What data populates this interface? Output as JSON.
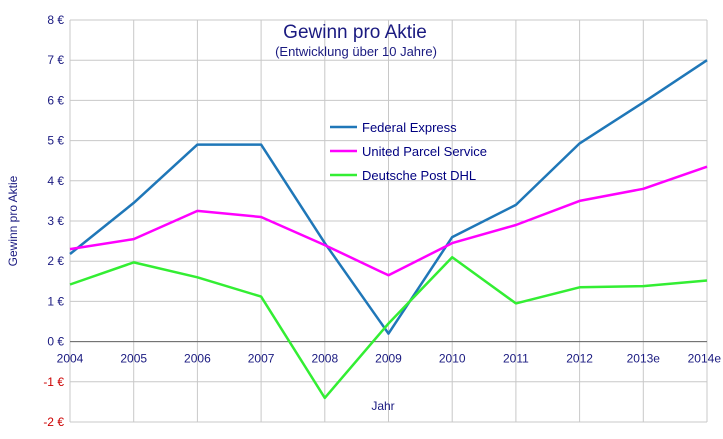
{
  "chart_data": {
    "type": "line",
    "title": "Gewinn pro Aktie",
    "subtitle": "(Entwicklung über 10 Jahre)",
    "xlabel": "Jahr",
    "ylabel": "Gewinn pro Aktie",
    "categories": [
      "2004",
      "2005",
      "2006",
      "2007",
      "2008",
      "2009",
      "2010",
      "2011",
      "2012",
      "2013e",
      "2014e"
    ],
    "y_ticks": [
      -2,
      -1,
      0,
      1,
      2,
      3,
      4,
      5,
      6,
      7,
      8
    ],
    "y_tick_labels": [
      "-2 €",
      "-1 €",
      "0 €",
      "1 €",
      "2 €",
      "3 €",
      "4 €",
      "5 €",
      "6 €",
      "7 €",
      "8 €"
    ],
    "ylim": [
      -2,
      8
    ],
    "grid": true,
    "legend_position": "center",
    "negative_tick_color": "#cc0000",
    "series": [
      {
        "name": "Federal Express",
        "color": "#1f77b8",
        "values": [
          2.18,
          3.45,
          4.9,
          4.9,
          2.45,
          0.2,
          2.6,
          3.4,
          4.93,
          5.95,
          7.0
        ]
      },
      {
        "name": "United Parcel Service",
        "color": "#ff00ff",
        "values": [
          2.3,
          2.55,
          3.25,
          3.1,
          2.4,
          1.65,
          2.45,
          2.9,
          3.5,
          3.8,
          4.35
        ]
      },
      {
        "name": "Deutsche Post DHL",
        "color": "#33ee33",
        "values": [
          1.42,
          1.97,
          1.6,
          1.12,
          -1.4,
          0.45,
          2.1,
          0.95,
          1.35,
          1.38,
          1.52
        ]
      }
    ]
  }
}
